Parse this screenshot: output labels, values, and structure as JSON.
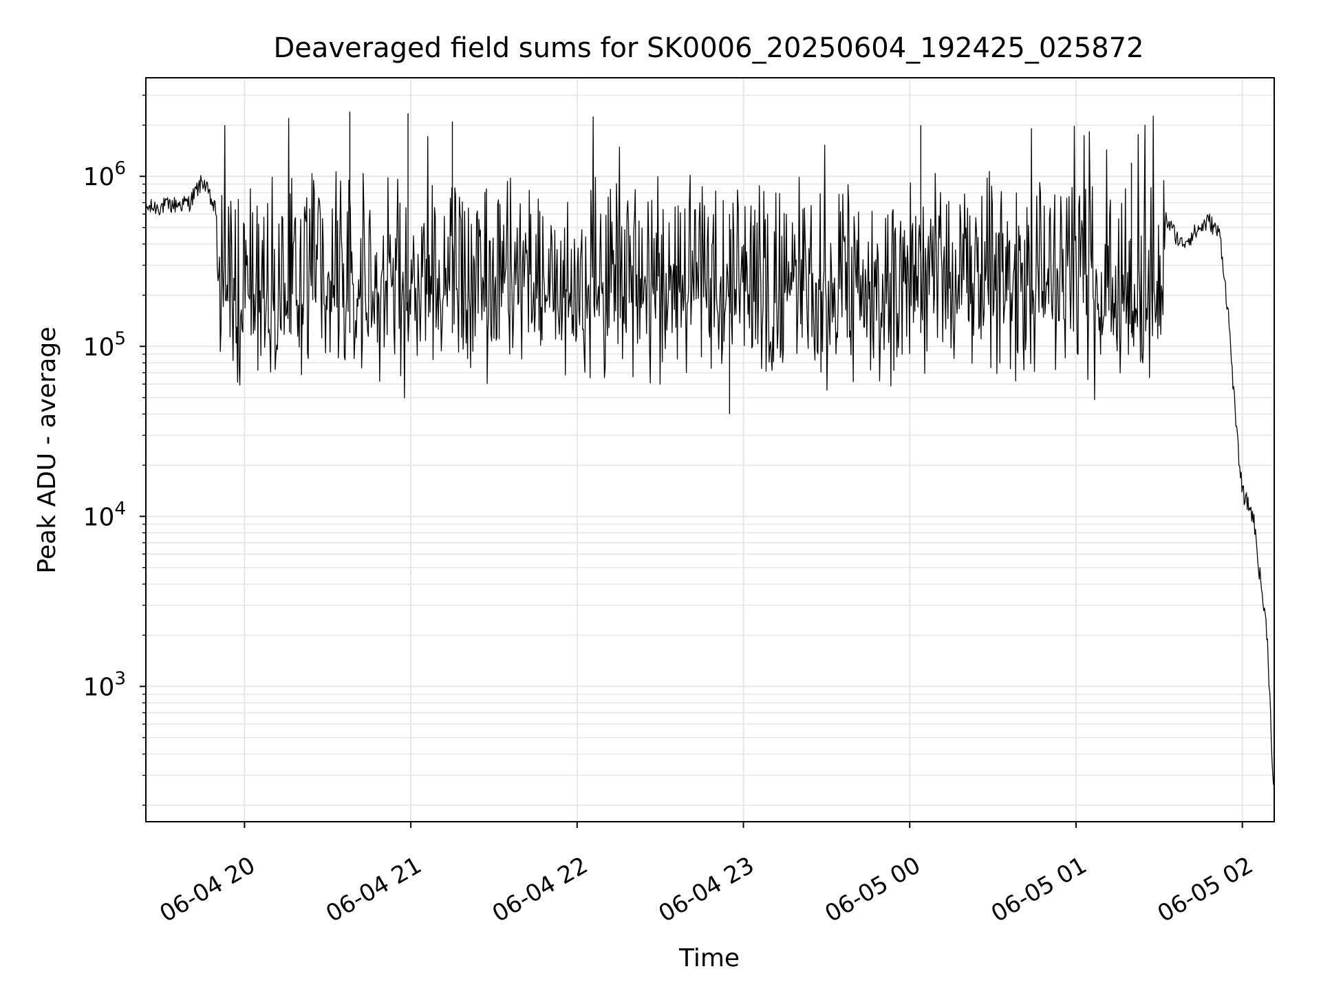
{
  "chart_data": {
    "type": "line",
    "title": "Deaveraged field sums for SK0006_20250604_192425_025872",
    "xlabel": "Time",
    "ylabel": "Peak ADU - average",
    "yscale": "log",
    "grid": true,
    "x_ticks": [
      "06-04 20",
      "06-04 21",
      "06-04 22",
      "06-04 23",
      "06-05 00",
      "06-05 01",
      "06-05 02"
    ],
    "y_ticks": [
      {
        "base": "10",
        "exp": "3",
        "value": 1000
      },
      {
        "base": "10",
        "exp": "4",
        "value": 10000
      },
      {
        "base": "10",
        "exp": "5",
        "value": 100000
      },
      {
        "base": "10",
        "exp": "6",
        "value": 1000000
      }
    ],
    "xlim": [
      "2025-06-04 19:24:25",
      "2025-06-05 02:11:30"
    ],
    "ylim": [
      160,
      3800000
    ],
    "series": [
      {
        "color": "#000000",
        "description_points": [
          {
            "t": "2025-06-04 19:24:25",
            "y": 650000
          },
          {
            "t": "2025-06-04 19:40",
            "y": 700000
          },
          {
            "t": "2025-06-04 19:45",
            "y": 950000
          },
          {
            "t": "2025-06-04 19:50",
            "y": 600000
          },
          {
            "t": "2025-06-04 19:55",
            "y": 400000
          },
          {
            "t": "2025-06-04 20:38",
            "y": 2400000
          },
          {
            "t": "2025-06-04 20:59",
            "y": 2350000
          },
          {
            "t": "2025-06-04 21:15",
            "y": 2100000
          },
          {
            "t": "2025-06-04 22:55",
            "y": 40000
          },
          {
            "t": "2025-06-05 00:04",
            "y": 2000000
          },
          {
            "t": "2025-06-05 01:20",
            "y": 1200000
          },
          {
            "t": "2025-06-05 01:38",
            "y": 400000
          },
          {
            "t": "2025-06-05 01:48",
            "y": 550000
          },
          {
            "t": "2025-06-05 01:52",
            "y": 450000
          },
          {
            "t": "2025-06-05 01:55",
            "y": 150000
          },
          {
            "t": "2025-06-05 01:58",
            "y": 30000
          },
          {
            "t": "2025-06-05 02:00",
            "y": 14000
          },
          {
            "t": "2025-06-05 02:04",
            "y": 10000
          },
          {
            "t": "2025-06-05 02:06",
            "y": 5000
          },
          {
            "t": "2025-06-05 02:09",
            "y": 2000
          },
          {
            "t": "2025-06-05 02:11:15",
            "y": 250
          }
        ]
      }
    ]
  }
}
